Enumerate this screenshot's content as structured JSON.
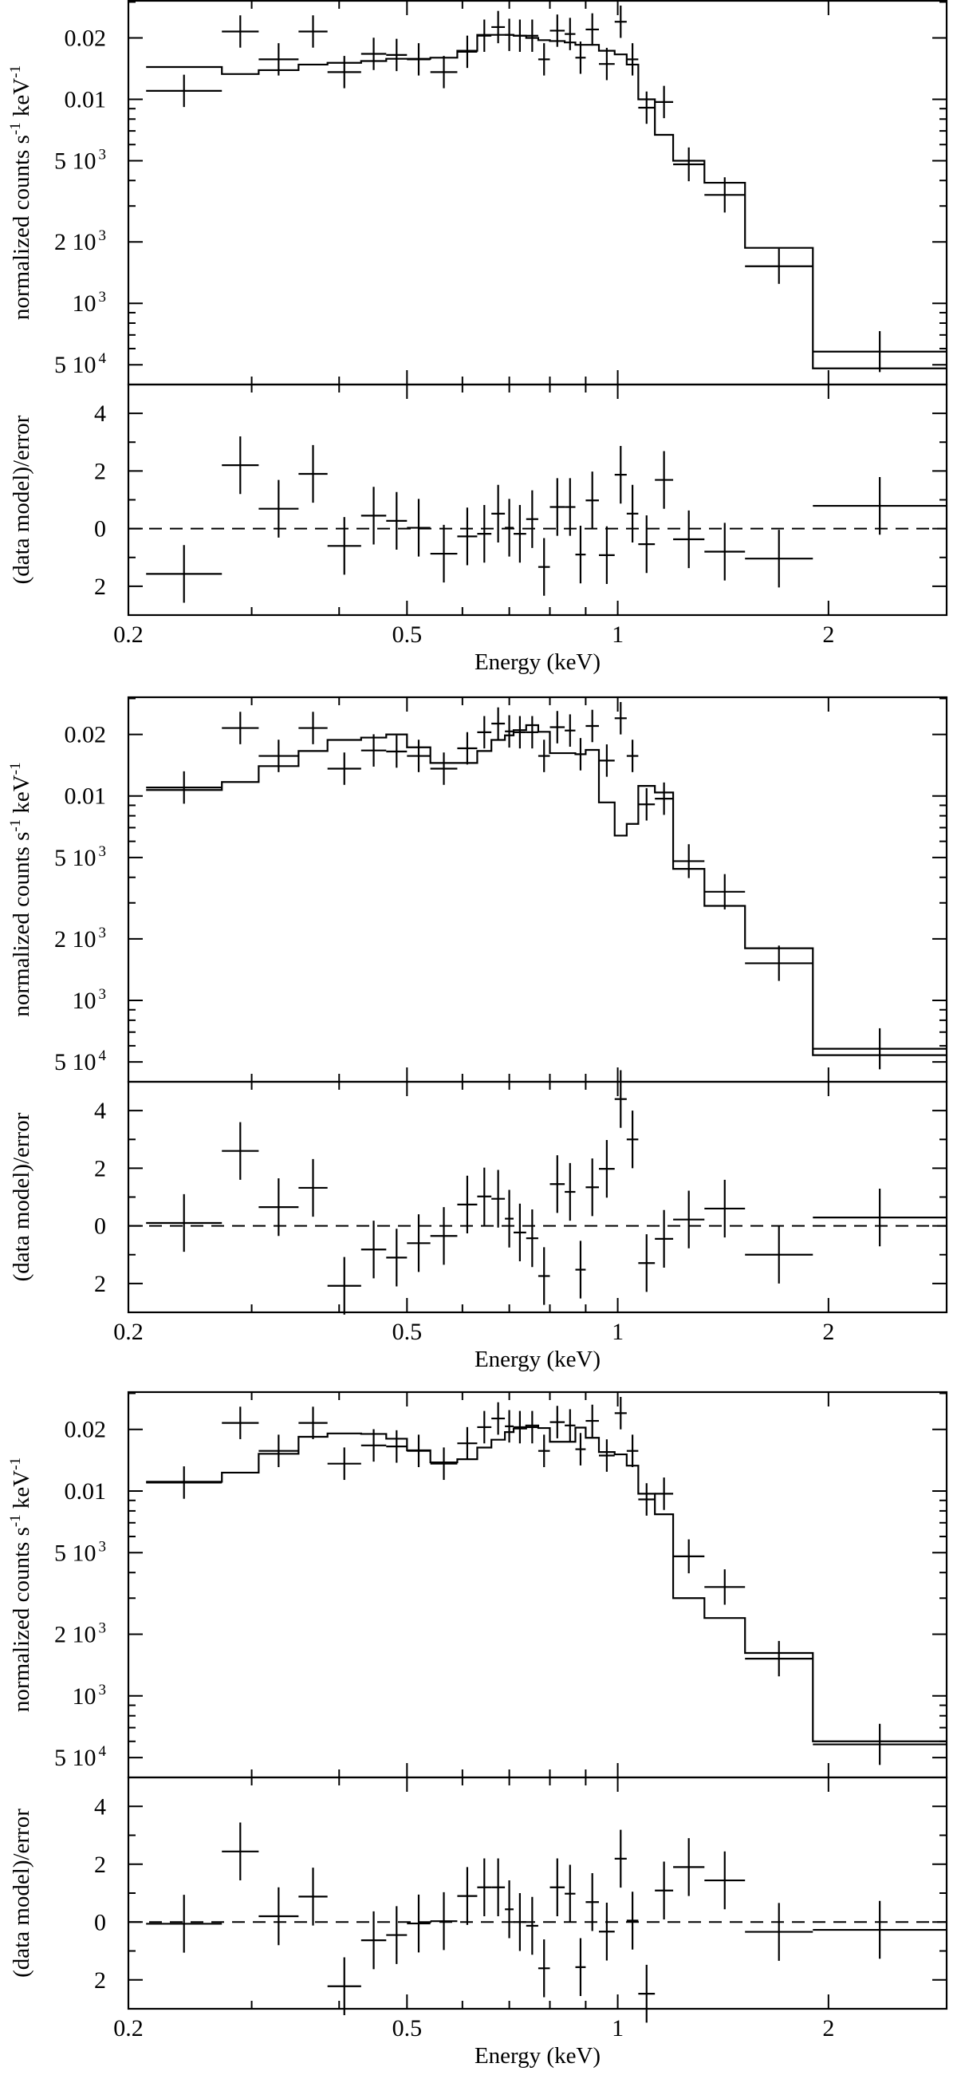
{
  "chart_data": [
    {
      "type": "line",
      "style": "step model with data crosses, residual sub-panel",
      "xlabel": "Energy (keV)",
      "ylabel": {
        "text": "normalized counts s",
        "sup1": "-1",
        "mid": " keV",
        "sup2": "-1"
      },
      "xscale": "log",
      "yscale": "log",
      "xlim": [
        0.2,
        2.95
      ],
      "ylim": [
        0.0004,
        0.0304
      ],
      "xticks": [
        {
          "value": 0.2,
          "label": "0.2"
        },
        {
          "value": 0.5,
          "label": "0.5"
        },
        {
          "value": 1,
          "label": "1"
        },
        {
          "value": 2,
          "label": "2"
        }
      ],
      "yticks": [
        {
          "value": 0.02,
          "label": "0.02",
          "sup": ""
        },
        {
          "value": 0.01,
          "label": "0.01",
          "sup": ""
        },
        {
          "value": 0.005,
          "label": "5 10",
          "sup": "3"
        },
        {
          "value": 0.002,
          "label": "2 10",
          "sup": "3"
        },
        {
          "value": 0.001,
          "label": "10",
          "sup": "3"
        },
        {
          "value": 0.0005,
          "label": "5 10",
          "sup": "4"
        }
      ],
      "bin_edges": [
        0.212,
        0.272,
        0.307,
        0.35,
        0.385,
        0.43,
        0.467,
        0.5,
        0.54,
        0.59,
        0.63,
        0.66,
        0.69,
        0.71,
        0.74,
        0.77,
        0.8,
        0.84,
        0.87,
        0.9,
        0.94,
        0.99,
        1.03,
        1.07,
        1.13,
        1.2,
        1.33,
        1.52,
        1.9,
        2.95
      ],
      "data_counts": [
        0.011,
        0.0215,
        0.0157,
        0.0215,
        0.0136,
        0.0167,
        0.0165,
        0.0157,
        0.0136,
        0.0171,
        0.0205,
        0.0226,
        0.0207,
        0.0205,
        0.0205,
        0.0157,
        0.0217,
        0.0209,
        0.016,
        0.022,
        0.0149,
        0.024,
        0.0157,
        0.0091,
        0.0097,
        0.0048,
        0.0034,
        0.00152,
        0.00058
      ],
      "data_err_rel": [
        0.2,
        0.2,
        0.2,
        0.2,
        0.2,
        0.2,
        0.2,
        0.2,
        0.2,
        0.2,
        0.2,
        0.2,
        0.2,
        0.2,
        0.2,
        0.2,
        0.2,
        0.2,
        0.2,
        0.2,
        0.2,
        0.2,
        0.2,
        0.2,
        0.2,
        0.21,
        0.22,
        0.22,
        0.26
      ],
      "model": [
        0.0144,
        0.0133,
        0.0139,
        0.0148,
        0.0151,
        0.0154,
        0.0158,
        0.0158,
        0.016,
        0.0173,
        0.0207,
        0.0207,
        0.0207,
        0.0205,
        0.02,
        0.0195,
        0.0193,
        0.019,
        0.0185,
        0.0185,
        0.0173,
        0.0166,
        0.0148,
        0.01,
        0.0067,
        0.005,
        0.0039,
        0.00187,
        0.00048
      ],
      "residuals": {
        "ylabel": "(data model)/error",
        "ylim": [
          -3,
          5
        ],
        "yticks": [
          {
            "value": 4,
            "label": "4"
          },
          {
            "value": 2,
            "label": "2"
          },
          {
            "value": 0,
            "label": "0"
          },
          {
            "value": -2,
            "label": "2"
          }
        ],
        "values": [
          -1.57,
          2.2,
          0.69,
          1.9,
          -0.6,
          0.45,
          0.27,
          0.03,
          -0.87,
          -0.27,
          -0.18,
          0.52,
          0.03,
          -0.18,
          0.33,
          -1.33,
          0.75,
          0.75,
          -0.9,
          0.98,
          -0.92,
          1.87,
          0.52,
          -0.54,
          1.69,
          -0.37,
          -0.8,
          -1.04,
          0.79
        ],
        "err": 1.0
      }
    },
    {
      "type": "line",
      "style": "step model with data crosses, residual sub-panel",
      "xlabel": "Energy (keV)",
      "ylabel": {
        "text": "normalized counts s",
        "sup1": "-1",
        "mid": " keV",
        "sup2": "-1"
      },
      "xscale": "log",
      "yscale": "log",
      "xlim": [
        0.2,
        2.95
      ],
      "ylim": [
        0.0004,
        0.0304
      ],
      "xticks": [
        {
          "value": 0.2,
          "label": "0.2"
        },
        {
          "value": 0.5,
          "label": "0.5"
        },
        {
          "value": 1,
          "label": "1"
        },
        {
          "value": 2,
          "label": "2"
        }
      ],
      "yticks": [
        {
          "value": 0.02,
          "label": "0.02",
          "sup": ""
        },
        {
          "value": 0.01,
          "label": "0.01",
          "sup": ""
        },
        {
          "value": 0.005,
          "label": "5 10",
          "sup": "3"
        },
        {
          "value": 0.002,
          "label": "2 10",
          "sup": "3"
        },
        {
          "value": 0.001,
          "label": "10",
          "sup": "3"
        },
        {
          "value": 0.0005,
          "label": "5 10",
          "sup": "4"
        }
      ],
      "bin_edges": [
        0.212,
        0.272,
        0.307,
        0.35,
        0.385,
        0.43,
        0.467,
        0.5,
        0.54,
        0.59,
        0.63,
        0.66,
        0.69,
        0.71,
        0.74,
        0.77,
        0.8,
        0.84,
        0.87,
        0.9,
        0.94,
        0.99,
        1.03,
        1.07,
        1.13,
        1.2,
        1.33,
        1.52,
        1.9,
        2.95
      ],
      "data_counts": [
        0.011,
        0.0215,
        0.0157,
        0.0215,
        0.0136,
        0.0167,
        0.0165,
        0.0157,
        0.0136,
        0.0171,
        0.0205,
        0.0226,
        0.0207,
        0.0205,
        0.0205,
        0.0157,
        0.0217,
        0.0209,
        0.016,
        0.022,
        0.0149,
        0.024,
        0.0157,
        0.0091,
        0.0097,
        0.0048,
        0.0034,
        0.00152,
        0.00058
      ],
      "data_err_rel": [
        0.2,
        0.2,
        0.2,
        0.2,
        0.2,
        0.2,
        0.2,
        0.2,
        0.2,
        0.2,
        0.2,
        0.2,
        0.2,
        0.2,
        0.2,
        0.2,
        0.2,
        0.2,
        0.2,
        0.2,
        0.2,
        0.2,
        0.2,
        0.2,
        0.2,
        0.21,
        0.22,
        0.22,
        0.26
      ],
      "model": [
        0.0107,
        0.0117,
        0.014,
        0.0166,
        0.0188,
        0.0193,
        0.02,
        0.0173,
        0.0145,
        0.0145,
        0.0166,
        0.0188,
        0.0198,
        0.021,
        0.0222,
        0.0206,
        0.0162,
        0.0162,
        0.016,
        0.0168,
        0.0093,
        0.0064,
        0.0073,
        0.0112,
        0.0104,
        0.0044,
        0.0029,
        0.0018,
        0.00054
      ],
      "residuals": {
        "ylabel": "(data model)/error",
        "ylim": [
          -3,
          5
        ],
        "yticks": [
          {
            "value": 4,
            "label": "4"
          },
          {
            "value": 2,
            "label": "2"
          },
          {
            "value": 0,
            "label": "0"
          },
          {
            "value": -2,
            "label": "2"
          }
        ],
        "values": [
          0.1,
          2.6,
          0.65,
          1.32,
          -2.08,
          -0.82,
          -1.1,
          -0.6,
          -0.35,
          0.74,
          1.02,
          0.94,
          0.25,
          -0.23,
          -0.43,
          -1.74,
          1.45,
          1.18,
          -1.52,
          1.34,
          1.98,
          4.4,
          3.0,
          -1.29,
          -0.45,
          0.22,
          0.6,
          -1.0,
          0.29
        ],
        "err": 1.0
      }
    },
    {
      "type": "line",
      "style": "step model with data crosses, residual sub-panel",
      "xlabel": "Energy (keV)",
      "ylabel": {
        "text": "normalized counts s",
        "sup1": "-1",
        "mid": " keV",
        "sup2": "-1"
      },
      "xscale": "log",
      "yscale": "log",
      "xlim": [
        0.2,
        2.95
      ],
      "ylim": [
        0.0004,
        0.0304
      ],
      "xticks": [
        {
          "value": 0.2,
          "label": "0.2"
        },
        {
          "value": 0.5,
          "label": "0.5"
        },
        {
          "value": 1,
          "label": "1"
        },
        {
          "value": 2,
          "label": "2"
        }
      ],
      "yticks": [
        {
          "value": 0.02,
          "label": "0.02",
          "sup": ""
        },
        {
          "value": 0.01,
          "label": "0.01",
          "sup": ""
        },
        {
          "value": 0.005,
          "label": "5 10",
          "sup": "3"
        },
        {
          "value": 0.002,
          "label": "2 10",
          "sup": "3"
        },
        {
          "value": 0.001,
          "label": "10",
          "sup": "3"
        },
        {
          "value": 0.0005,
          "label": "5 10",
          "sup": "4"
        }
      ],
      "bin_edges": [
        0.212,
        0.272,
        0.307,
        0.35,
        0.385,
        0.43,
        0.467,
        0.5,
        0.54,
        0.59,
        0.63,
        0.66,
        0.69,
        0.71,
        0.74,
        0.77,
        0.8,
        0.84,
        0.87,
        0.9,
        0.94,
        0.99,
        1.03,
        1.07,
        1.13,
        1.2,
        1.33,
        1.52,
        1.9,
        2.95
      ],
      "data_counts": [
        0.011,
        0.0215,
        0.0157,
        0.0215,
        0.0136,
        0.0167,
        0.0165,
        0.0157,
        0.0136,
        0.0171,
        0.0205,
        0.0226,
        0.0207,
        0.0205,
        0.0205,
        0.0157,
        0.0217,
        0.0209,
        0.016,
        0.022,
        0.0149,
        0.024,
        0.0157,
        0.0091,
        0.0097,
        0.0048,
        0.0034,
        0.00152,
        0.00058
      ],
      "data_err_rel": [
        0.2,
        0.2,
        0.2,
        0.2,
        0.2,
        0.2,
        0.2,
        0.2,
        0.2,
        0.2,
        0.2,
        0.2,
        0.2,
        0.2,
        0.2,
        0.2,
        0.2,
        0.2,
        0.2,
        0.2,
        0.2,
        0.2,
        0.2,
        0.2,
        0.2,
        0.21,
        0.22,
        0.22,
        0.26
      ],
      "model": [
        0.0111,
        0.0123,
        0.0152,
        0.0184,
        0.0191,
        0.019,
        0.018,
        0.0158,
        0.0138,
        0.0143,
        0.0163,
        0.0178,
        0.0194,
        0.0202,
        0.0209,
        0.0203,
        0.0174,
        0.0174,
        0.0204,
        0.0182,
        0.0155,
        0.0151,
        0.0133,
        0.0097,
        0.0077,
        0.003,
        0.0024,
        0.00162,
        0.0006
      ],
      "residuals": {
        "ylabel": "(data model)/error",
        "ylim": [
          -3,
          5
        ],
        "yticks": [
          {
            "value": 4,
            "label": "4"
          },
          {
            "value": 2,
            "label": "2"
          },
          {
            "value": 0,
            "label": "0"
          },
          {
            "value": -2,
            "label": "2"
          }
        ],
        "values": [
          -0.06,
          2.44,
          0.2,
          0.88,
          -2.22,
          -0.63,
          -0.45,
          -0.05,
          0.03,
          0.9,
          1.2,
          1.2,
          0.44,
          0.0,
          -0.13,
          -1.6,
          1.2,
          0.98,
          -1.56,
          0.69,
          -0.33,
          2.19,
          0.05,
          -2.48,
          1.09,
          1.9,
          1.44,
          -0.34,
          -0.27
        ],
        "err": 1.0
      }
    }
  ]
}
